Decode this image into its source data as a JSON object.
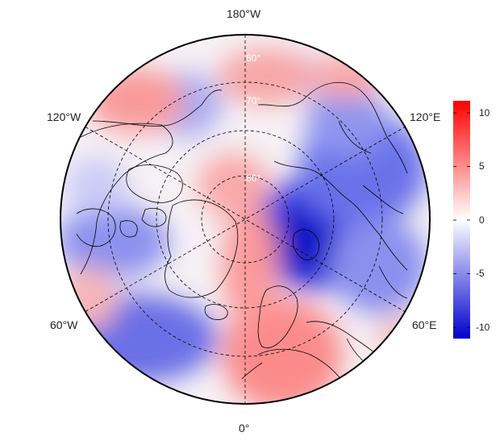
{
  "map": {
    "projection": "north-polar-stereographic",
    "longitude_labels": {
      "top": "180°W",
      "upper_left": "120°W",
      "upper_right": "120°E",
      "lower_left": "60°W",
      "lower_right": "60°E",
      "bottom": "0°"
    },
    "latitude_labels": [
      "60°",
      "70°",
      "80°"
    ],
    "anomaly_pattern": "red positive anomalies over Europe, Greenland/central Arctic and NE Pacific; blue negative anomalies over Siberia/Kara Sea and North Atlantic",
    "colorbar": {
      "ticks": [
        "10",
        "5",
        "0",
        "-5",
        "-10"
      ],
      "range": [
        -11,
        11
      ],
      "colors": {
        "max": "#ff0000",
        "zero": "#ffffff",
        "min": "#0000cd"
      }
    }
  }
}
